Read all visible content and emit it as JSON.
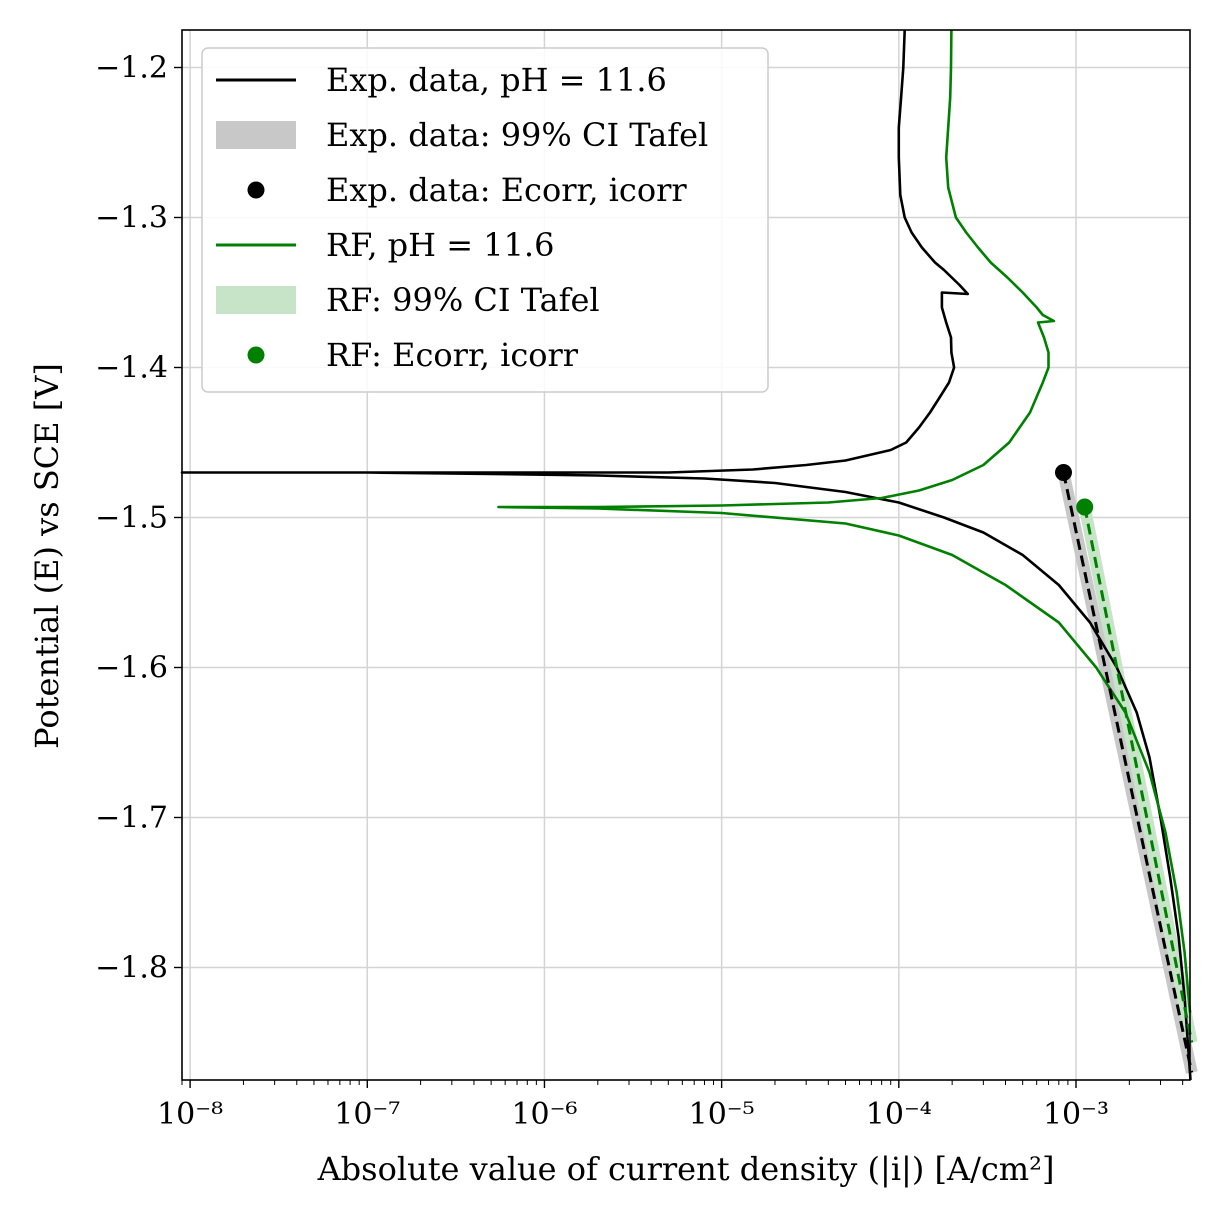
{
  "chart_data": {
    "type": "line",
    "xscale": "log",
    "xlim": [
      9e-09,
      0.0044
    ],
    "ylim": [
      -1.875,
      -1.175
    ],
    "grid": true,
    "legend_position": "upper-left",
    "xlabel": "Absolute value of current density (|i|) [A/cm²]",
    "ylabel": "Potential (E) vs SCE [V]",
    "x_ticks": [
      {
        "value": 1e-08,
        "label": "10⁻⁸"
      },
      {
        "value": 1e-07,
        "label": "10⁻⁷"
      },
      {
        "value": 1e-06,
        "label": "10⁻⁶"
      },
      {
        "value": 1e-05,
        "label": "10⁻⁵"
      },
      {
        "value": 0.0001,
        "label": "10⁻⁴"
      },
      {
        "value": 0.001,
        "label": "10⁻³"
      }
    ],
    "y_ticks": [
      {
        "value": -1.2,
        "label": "−1.2"
      },
      {
        "value": -1.3,
        "label": "−1.3"
      },
      {
        "value": -1.4,
        "label": "−1.4"
      },
      {
        "value": -1.5,
        "label": "−1.5"
      },
      {
        "value": -1.6,
        "label": "−1.6"
      },
      {
        "value": -1.7,
        "label": "−1.7"
      },
      {
        "value": -1.8,
        "label": "−1.8"
      }
    ],
    "colors": {
      "exp": "#000000",
      "rf": "#008000",
      "exp_ci": "#c8c8c8",
      "rf_ci": "#c8e4c8"
    },
    "legend": [
      {
        "kind": "line",
        "color": "#000000",
        "label": "Exp. data, pH = 11.6"
      },
      {
        "kind": "patch",
        "color": "#c8c8c8",
        "label": "Exp. data: 99% CI Tafel"
      },
      {
        "kind": "dot",
        "color": "#000000",
        "label": "Exp. data: Ecorr, icorr"
      },
      {
        "kind": "line",
        "color": "#008000",
        "label": "RF, pH = 11.6"
      },
      {
        "kind": "patch",
        "color": "#c8e4c8",
        "label": "RF: 99% CI Tafel"
      },
      {
        "kind": "dot",
        "color": "#008000",
        "label": "RF: Ecorr, icorr"
      }
    ],
    "series": [
      {
        "name": "Exp. data, pH = 11.6",
        "color": "#000000",
        "points": [
          [
            0.00443,
            -1.875
          ],
          [
            0.0041,
            -1.82
          ],
          [
            0.0038,
            -1.78
          ],
          [
            0.0034,
            -1.74
          ],
          [
            0.003,
            -1.7
          ],
          [
            0.0026,
            -1.66
          ],
          [
            0.0022,
            -1.63
          ],
          [
            0.0017,
            -1.6
          ],
          [
            0.0012,
            -1.57
          ],
          [
            0.0008,
            -1.545
          ],
          [
            0.0005,
            -1.525
          ],
          [
            0.0003,
            -1.51
          ],
          [
            0.00018,
            -1.5
          ],
          [
            0.0001,
            -1.49
          ],
          [
            5e-05,
            -1.483
          ],
          [
            2e-05,
            -1.477
          ],
          [
            8e-06,
            -1.474
          ],
          [
            2e-06,
            -1.472
          ],
          [
            5e-07,
            -1.471
          ],
          [
            1e-07,
            -1.47
          ],
          [
            9e-09,
            -1.47
          ],
          [
            1e-07,
            -1.47
          ],
          [
            1e-06,
            -1.47
          ],
          [
            5e-06,
            -1.47
          ],
          [
            1.5e-05,
            -1.468
          ],
          [
            3e-05,
            -1.465
          ],
          [
            5e-05,
            -1.462
          ],
          [
            7e-05,
            -1.458
          ],
          [
            9e-05,
            -1.455
          ],
          [
            0.00011,
            -1.45
          ],
          [
            0.00013,
            -1.44
          ],
          [
            0.00015,
            -1.43
          ],
          [
            0.00017,
            -1.42
          ],
          [
            0.000192,
            -1.41
          ],
          [
            0.000205,
            -1.4
          ],
          [
            0.000198,
            -1.39
          ],
          [
            0.000197,
            -1.38
          ],
          [
            0.000185,
            -1.37
          ],
          [
            0.000175,
            -1.36
          ],
          [
            0.000175,
            -1.35
          ],
          [
            0.000245,
            -1.351
          ],
          [
            0.00022,
            -1.345
          ],
          [
            0.00018,
            -1.335
          ],
          [
            0.00016,
            -1.33
          ],
          [
            0.000135,
            -1.32
          ],
          [
            0.000118,
            -1.31
          ],
          [
            0.000108,
            -1.3
          ],
          [
            0.000102,
            -1.285
          ],
          [
            0.0001,
            -1.26
          ],
          [
            0.0001,
            -1.24
          ],
          [
            0.000103,
            -1.22
          ],
          [
            0.000106,
            -1.2
          ],
          [
            0.000108,
            -1.175
          ]
        ]
      },
      {
        "name": "RF, pH = 11.6",
        "color": "#008000",
        "points": [
          [
            0.0044,
            -1.83
          ],
          [
            0.0041,
            -1.79
          ],
          [
            0.0037,
            -1.75
          ],
          [
            0.0032,
            -1.71
          ],
          [
            0.0026,
            -1.67
          ],
          [
            0.0019,
            -1.63
          ],
          [
            0.0013,
            -1.6
          ],
          [
            0.0008,
            -1.57
          ],
          [
            0.0004,
            -1.545
          ],
          [
            0.0002,
            -1.525
          ],
          [
            0.0001,
            -1.512
          ],
          [
            5e-05,
            -1.504
          ],
          [
            1e-05,
            -1.497
          ],
          [
            2e-06,
            -1.494
          ],
          [
            5.5e-07,
            -1.493
          ],
          [
            2e-06,
            -1.493
          ],
          [
            1e-05,
            -1.492
          ],
          [
            4e-05,
            -1.49
          ],
          [
            8e-05,
            -1.487
          ],
          [
            0.00013,
            -1.482
          ],
          [
            0.0002,
            -1.475
          ],
          [
            0.0003,
            -1.465
          ],
          [
            0.00042,
            -1.45
          ],
          [
            0.00055,
            -1.43
          ],
          [
            0.00065,
            -1.41
          ],
          [
            0.0007,
            -1.4
          ],
          [
            0.0007,
            -1.39
          ],
          [
            0.00066,
            -1.38
          ],
          [
            0.00061,
            -1.37
          ],
          [
            0.00075,
            -1.369
          ],
          [
            0.00065,
            -1.365
          ],
          [
            0.0006,
            -1.36
          ],
          [
            0.0005,
            -1.35
          ],
          [
            0.00041,
            -1.34
          ],
          [
            0.00033,
            -1.33
          ],
          [
            0.00028,
            -1.32
          ],
          [
            0.00024,
            -1.31
          ],
          [
            0.00021,
            -1.3
          ],
          [
            0.00019,
            -1.28
          ],
          [
            0.000185,
            -1.26
          ],
          [
            0.00019,
            -1.24
          ],
          [
            0.000195,
            -1.22
          ],
          [
            0.000197,
            -1.2
          ],
          [
            0.000198,
            -1.175
          ]
        ]
      }
    ],
    "tafel_fits": [
      {
        "name": "Exp. data: 99% CI Tafel",
        "color": "#000000",
        "ci_color": "#c8c8c8",
        "start": [
          0.00085,
          -1.47
        ],
        "end": [
          0.0045,
          -1.87
        ]
      },
      {
        "name": "RF: 99% CI Tafel",
        "color": "#008000",
        "ci_color": "#c8e4c8",
        "start": [
          0.00112,
          -1.493
        ],
        "end": [
          0.0045,
          -1.85
        ]
      }
    ],
    "corrosion_points": [
      {
        "name": "Exp. data: Ecorr, icorr",
        "color": "#000000",
        "x": 0.00085,
        "y": -1.47
      },
      {
        "name": "RF: Ecorr, icorr",
        "color": "#008000",
        "x": 0.00112,
        "y": -1.493
      }
    ]
  }
}
